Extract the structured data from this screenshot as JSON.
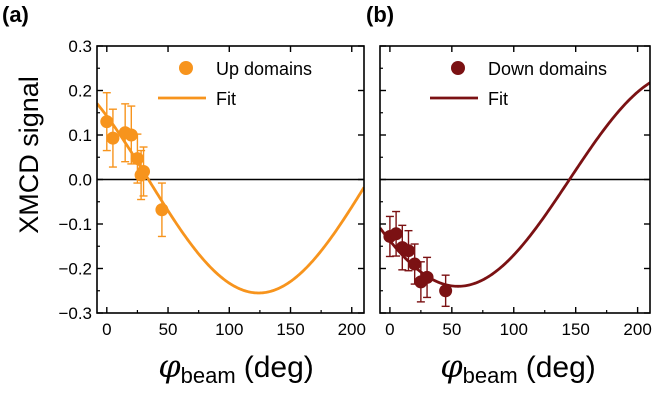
{
  "y_axis_label": "XMCD signal",
  "chart_data": [
    {
      "type": "scatter",
      "panel_label": "(a)",
      "xlabel_symbol": "φ",
      "xlabel_subscript": "beam",
      "xlabel_unit": "(deg)",
      "xlim": [
        -8,
        210
      ],
      "ylim": [
        -0.3,
        0.3
      ],
      "xticks": [
        0,
        50,
        100,
        150,
        200
      ],
      "yticks": [
        -0.3,
        -0.2,
        -0.1,
        0.0,
        0.1,
        0.2,
        0.3
      ],
      "ytick_labels": [
        "−0.3",
        "−0.2",
        "−0.1",
        "0.0",
        "0.1",
        "0.2",
        "0.3"
      ],
      "color": "#F7941D",
      "legend_position": "top-right",
      "series": [
        {
          "name": "Up domains",
          "kind": "points",
          "x": [
            0,
            5,
            15,
            20,
            25,
            28,
            30,
            45
          ],
          "y": [
            0.13,
            0.093,
            0.105,
            0.1,
            0.047,
            0.01,
            0.018,
            -0.068
          ],
          "yerr": [
            0.065,
            0.065,
            0.065,
            0.065,
            0.055,
            0.055,
            0.055,
            0.06
          ]
        },
        {
          "name": "Fit",
          "kind": "line",
          "function": "A*cos((x - x0) deg)",
          "amplitude": -0.255,
          "x0": 124
        }
      ],
      "hline": 0
    },
    {
      "type": "scatter",
      "panel_label": "(b)",
      "xlabel_symbol": "φ",
      "xlabel_subscript": "beam",
      "xlabel_unit": "(deg)",
      "xlim": [
        -8,
        210
      ],
      "ylim": [
        -0.3,
        0.3
      ],
      "xticks": [
        0,
        50,
        100,
        150,
        200
      ],
      "color": "#7B1113",
      "legend_position": "top-right",
      "series": [
        {
          "name": "Down domains",
          "kind": "points",
          "x": [
            0,
            5,
            10,
            15,
            20,
            25,
            30,
            45
          ],
          "y": [
            -0.128,
            -0.122,
            -0.153,
            -0.16,
            -0.19,
            -0.23,
            -0.22,
            -0.25
          ],
          "yerr": [
            0.045,
            0.05,
            0.05,
            0.045,
            0.045,
            0.045,
            0.045,
            0.035
          ]
        },
        {
          "name": "Fit",
          "kind": "line",
          "function": "A*cos((x - x0) deg)",
          "amplitude": -0.24,
          "x0": 55
        }
      ],
      "hline": 0
    }
  ]
}
